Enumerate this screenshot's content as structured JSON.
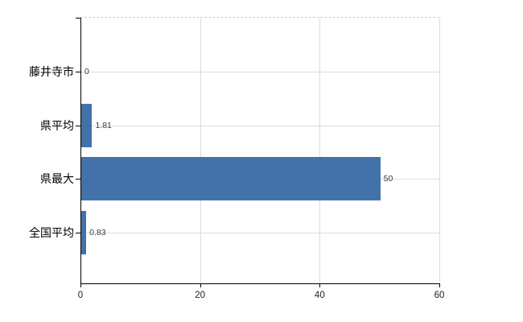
{
  "chart_data": {
    "type": "bar",
    "orientation": "horizontal",
    "title": "",
    "xlabel": "",
    "ylabel": "",
    "categories": [
      "藤井寺市",
      "県平均",
      "県最大",
      "全国平均"
    ],
    "values": [
      0,
      1.81,
      50,
      0.83
    ],
    "value_labels": [
      "0",
      "1.81",
      "50",
      "0.83"
    ],
    "x_ticks": [
      0,
      20,
      40,
      60
    ],
    "x_tick_labels": [
      "0",
      "20",
      "40",
      "60"
    ],
    "xlim": [
      0,
      60
    ],
    "grid": true,
    "legend": false,
    "colors": {
      "bar": "#4372aa",
      "gridline": "#dcdcdc",
      "plot_top_border": "#c9c9c9",
      "axis": "#000000",
      "category_label": "#000000",
      "value_label": "#3a3a3a",
      "tick_label": "#222222",
      "background": "#ffffff"
    }
  }
}
